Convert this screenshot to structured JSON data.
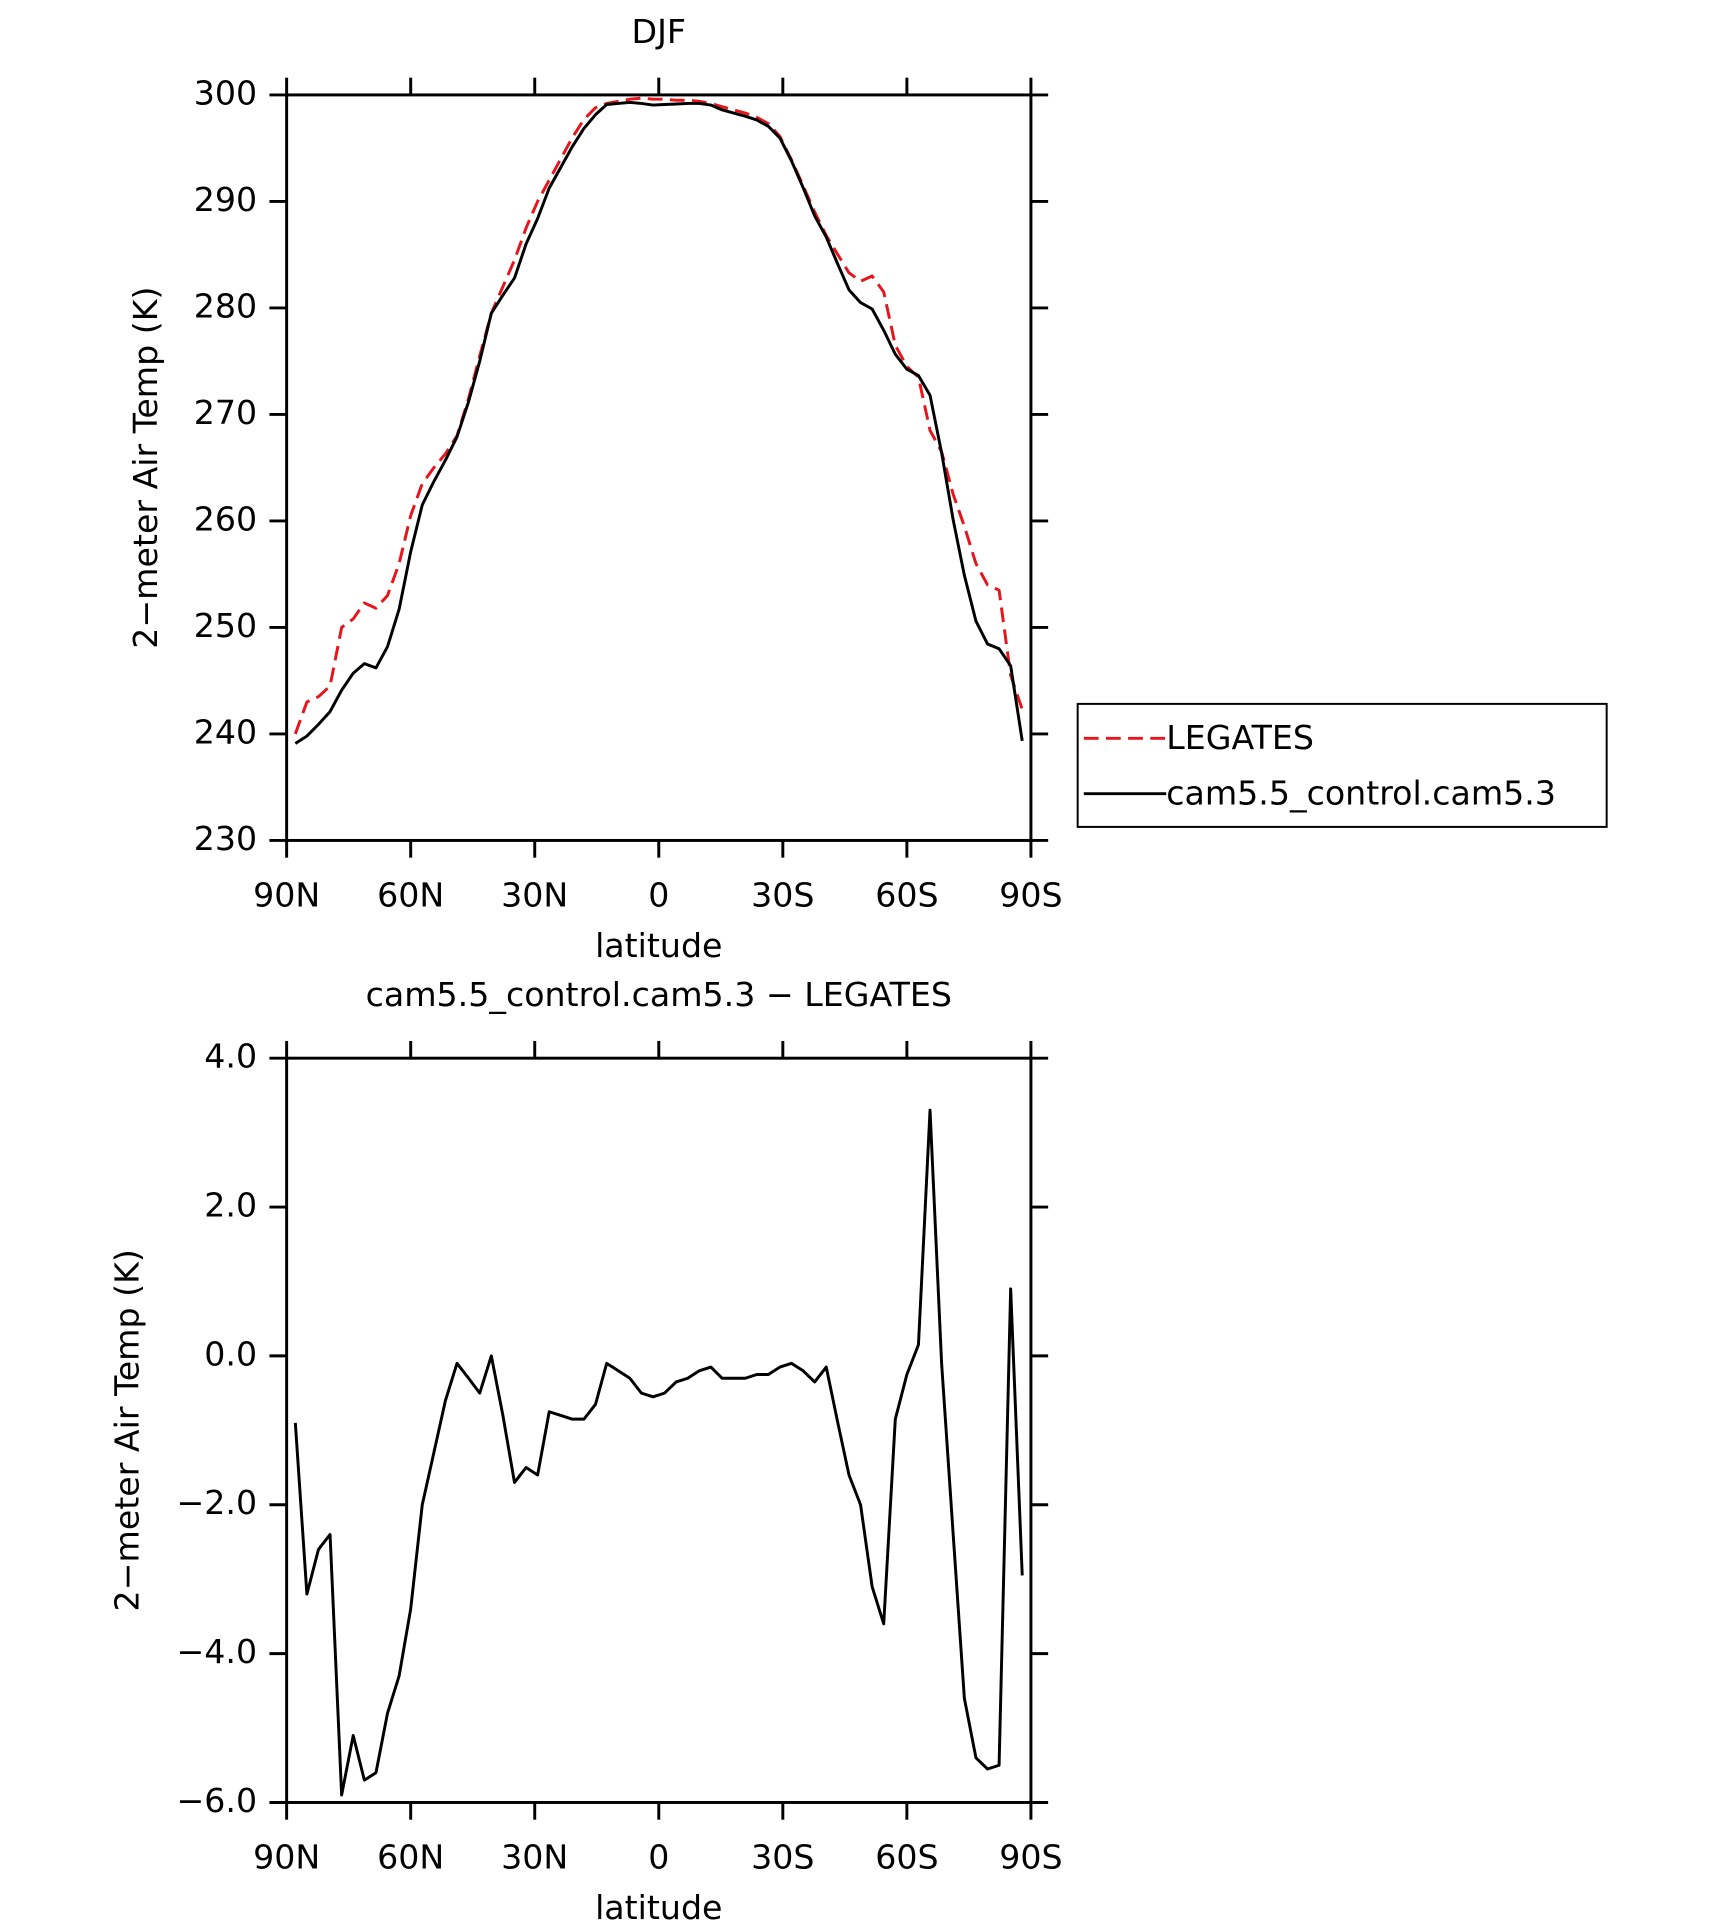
{
  "chart_data": [
    {
      "type": "line",
      "title": "DJF",
      "xlabel": "latitude",
      "ylabel": "2−meter Air Temp (K)",
      "x": [
        87.9,
        85.1,
        82.3,
        79.5,
        76.7,
        73.9,
        71.2,
        68.4,
        65.6,
        62.8,
        60.0,
        57.2,
        54.4,
        51.6,
        48.8,
        46.0,
        43.3,
        40.5,
        37.7,
        34.9,
        32.1,
        29.3,
        26.5,
        23.7,
        20.9,
        18.1,
        15.3,
        12.6,
        9.8,
        7.0,
        4.2,
        1.4,
        -1.4,
        -4.2,
        -7.0,
        -9.8,
        -12.6,
        -15.3,
        -18.1,
        -20.9,
        -23.7,
        -26.5,
        -29.3,
        -32.1,
        -34.9,
        -37.7,
        -40.5,
        -43.3,
        -46.0,
        -48.8,
        -51.6,
        -54.4,
        -57.2,
        -60.0,
        -62.8,
        -65.6,
        -68.4,
        -71.2,
        -73.9,
        -76.7,
        -79.5,
        -82.3,
        -85.1,
        -87.9
      ],
      "series": [
        {
          "name": "LEGATES",
          "color": "#e8141b",
          "linestyle": "dashed",
          "values": [
            240,
            243,
            243.5,
            244.5,
            250,
            250.8,
            252.3,
            251.8,
            253,
            256,
            260.5,
            263.5,
            265,
            266.3,
            268,
            271.5,
            275.5,
            279.5,
            282,
            284.5,
            287.5,
            290,
            292,
            294,
            296,
            297.7,
            298.8,
            299.2,
            299.4,
            299.6,
            299.7,
            299.6,
            299.6,
            299.5,
            299.5,
            299.4,
            299.2,
            298.9,
            298.6,
            298.3,
            297.9,
            297.3,
            296.1,
            293.9,
            291.5,
            289,
            286.8,
            285,
            283.3,
            282.5,
            283,
            281.5,
            276.5,
            274.5,
            273.5,
            268.5,
            266.5,
            262.5,
            259.5,
            256,
            254,
            253.5,
            245.5,
            242.3
          ]
        },
        {
          "name": "cam5.5_control.cam5.3",
          "color": "#000000",
          "linestyle": "solid",
          "values": [
            239.1,
            239.8,
            240.9,
            242.1,
            244.1,
            245.7,
            246.6,
            246.2,
            248.2,
            251.7,
            257.1,
            261.5,
            263.7,
            265.7,
            267.9,
            271.2,
            275,
            279.5,
            281.2,
            282.8,
            286,
            288.4,
            291.25,
            293.2,
            295.15,
            296.85,
            298.15,
            299.1,
            299.2,
            299.3,
            299.2,
            299.05,
            299.1,
            299.15,
            299.2,
            299.2,
            299.05,
            298.6,
            298.3,
            298,
            297.65,
            297.05,
            295.95,
            293.8,
            291.3,
            288.65,
            286.65,
            284.1,
            281.7,
            280.5,
            279.9,
            277.9,
            275.65,
            274.25,
            273.65,
            271.8,
            266.4,
            260.1,
            254.9,
            250.6,
            248.45,
            248,
            246.4,
            239.35
          ]
        }
      ],
      "xlim": [
        90,
        -90
      ],
      "xticks": [
        {
          "value": 90,
          "label": "90N"
        },
        {
          "value": 60,
          "label": "60N"
        },
        {
          "value": 30,
          "label": "30N"
        },
        0,
        {
          "value": -30,
          "label": "30S"
        },
        {
          "value": -60,
          "label": "60S"
        },
        {
          "value": -90,
          "label": "90S"
        }
      ],
      "ylim": [
        230,
        300
      ],
      "yticks": [
        230,
        240,
        250,
        260,
        270,
        280,
        290,
        300
      ],
      "legend": "right"
    },
    {
      "type": "line",
      "title": "cam5.5_control.cam5.3 − LEGATES",
      "xlabel": "latitude",
      "ylabel": "2−meter Air Temp (K)",
      "x": [
        87.9,
        85.1,
        82.3,
        79.5,
        76.7,
        73.9,
        71.2,
        68.4,
        65.6,
        62.8,
        60.0,
        57.2,
        54.4,
        51.6,
        48.8,
        46.0,
        43.3,
        40.5,
        37.7,
        34.9,
        32.1,
        29.3,
        26.5,
        23.7,
        20.9,
        18.1,
        15.3,
        12.6,
        9.8,
        7.0,
        4.2,
        1.4,
        -1.4,
        -4.2,
        -7.0,
        -9.8,
        -12.6,
        -15.3,
        -18.1,
        -20.9,
        -23.7,
        -26.5,
        -29.3,
        -32.1,
        -34.9,
        -37.7,
        -40.5,
        -43.3,
        -46.0,
        -48.8,
        -51.6,
        -54.4,
        -57.2,
        -60.0,
        -62.8,
        -65.6,
        -68.4,
        -71.2,
        -73.9,
        -76.7,
        -79.5,
        -82.3,
        -85.1,
        -87.9
      ],
      "values": [
        -0.9,
        -3.2,
        -2.6,
        -2.4,
        -5.9,
        -5.1,
        -5.7,
        -5.6,
        -4.8,
        -4.3,
        -3.4,
        -2.0,
        -1.3,
        -0.6,
        -0.1,
        -0.3,
        -0.5,
        0.0,
        -0.8,
        -1.7,
        -1.5,
        -1.6,
        -0.75,
        -0.8,
        -0.85,
        -0.85,
        -0.65,
        -0.1,
        -0.2,
        -0.3,
        -0.5,
        -0.55,
        -0.5,
        -0.35,
        -0.3,
        -0.2,
        -0.15,
        -0.3,
        -0.3,
        -0.3,
        -0.25,
        -0.25,
        -0.15,
        -0.1,
        -0.2,
        -0.35,
        -0.15,
        -0.9,
        -1.6,
        -2.0,
        -3.1,
        -3.6,
        -0.85,
        -0.25,
        0.15,
        3.3,
        -0.1,
        -2.4,
        -4.6,
        -5.4,
        -5.55,
        -5.5,
        0.9,
        -2.95
      ],
      "color": "#000000",
      "xlim": [
        90,
        -90
      ],
      "xticks": [
        {
          "value": 90,
          "label": "90N"
        },
        {
          "value": 60,
          "label": "60N"
        },
        {
          "value": 30,
          "label": "30N"
        },
        0,
        {
          "value": -30,
          "label": "30S"
        },
        {
          "value": -60,
          "label": "60S"
        },
        {
          "value": -90,
          "label": "90S"
        }
      ],
      "ylim": [
        -6,
        4
      ],
      "yticks": [
        {
          "value": -6,
          "label": "−6.0"
        },
        {
          "value": -4,
          "label": "−4.0"
        },
        {
          "value": -2,
          "label": "−2.0"
        },
        {
          "value": 0,
          "label": "0.0"
        },
        {
          "value": 2,
          "label": "2.0"
        },
        {
          "value": 4,
          "label": "4.0"
        }
      ]
    }
  ]
}
